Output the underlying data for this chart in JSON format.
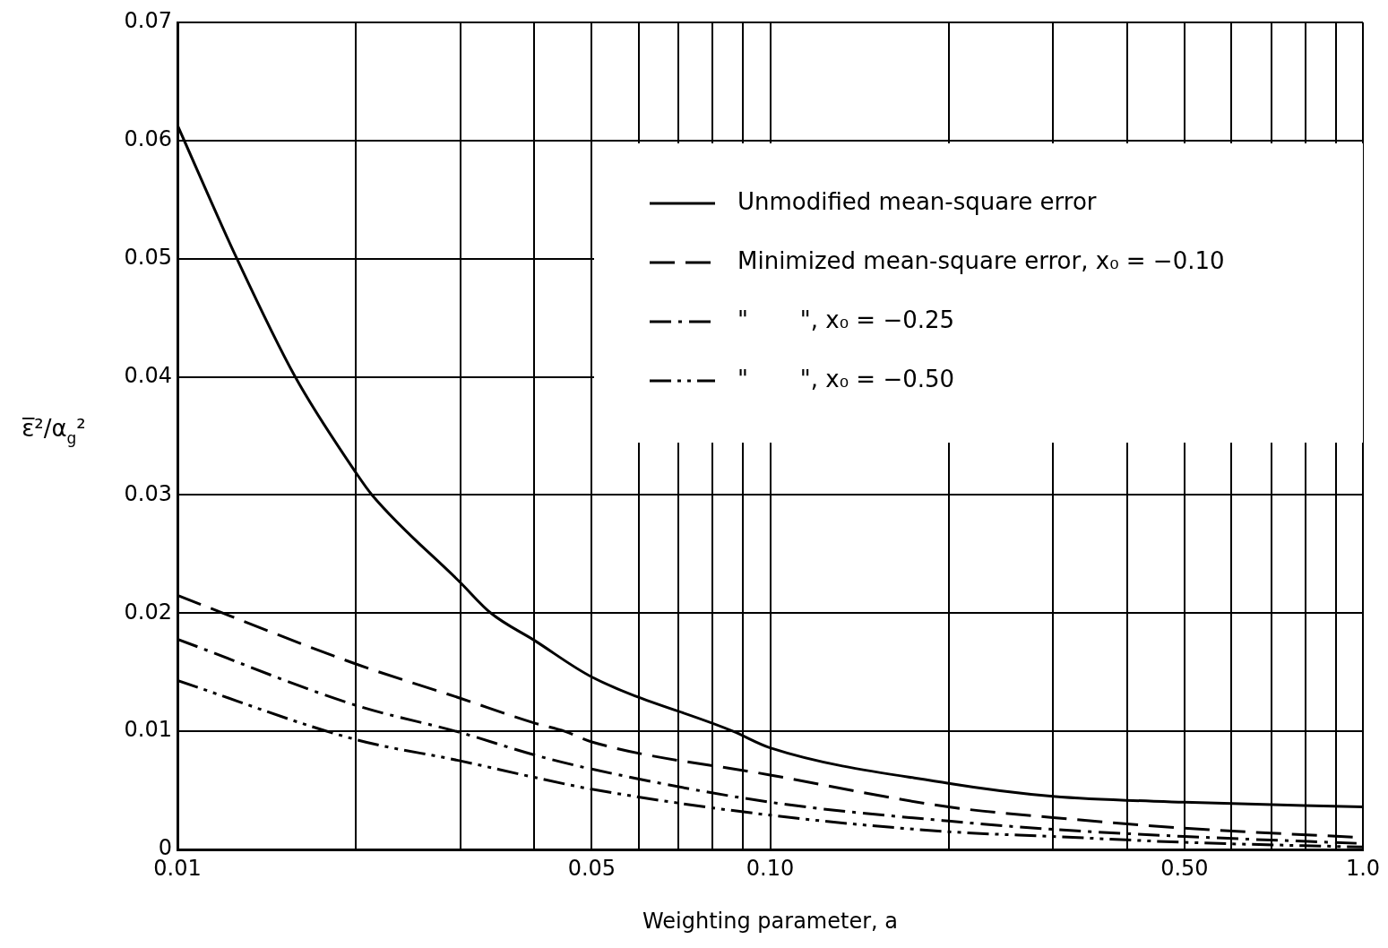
{
  "chart_data": {
    "type": "line",
    "xlabel": "Weighting parameter, a",
    "ylabel": "ε̅²/α$_{g}$²",
    "log": "x",
    "x": [
      0.01,
      0.0126,
      0.0158,
      0.02,
      0.0213,
      0.03,
      0.0338,
      0.04,
      0.05,
      0.0866,
      0.1,
      0.2,
      0.3,
      0.5,
      1.0
    ],
    "series": [
      {
        "name": "Unmodified mean-square error",
        "color": "#000000",
        "line_style": "solid",
        "values": [
          0.0613,
          0.05,
          0.04,
          0.0319,
          0.03,
          0.0226,
          0.02,
          0.0177,
          0.0146,
          0.01,
          0.0086,
          0.0056,
          0.0045,
          0.004,
          0.0036
        ]
      },
      {
        "name": "Minimized mean-square error, x₀ = −0.10",
        "color": "#000000",
        "line_style": "dashed",
        "x": [
          0.01,
          0.02,
          0.03,
          0.04,
          0.045,
          0.05,
          0.1,
          0.2,
          0.3,
          0.5,
          1.0
        ],
        "values": [
          0.0215,
          0.0157,
          0.0128,
          0.0107,
          0.01,
          0.0091,
          0.0063,
          0.0036,
          0.0027,
          0.0018,
          0.001
        ]
      },
      {
        "name": "\"       \", x₀ = −0.25",
        "color": "#000000",
        "line_style": "dashdot",
        "x": [
          0.01,
          0.02,
          0.03,
          0.04,
          0.05,
          0.1,
          0.2,
          0.3,
          0.5,
          1.0
        ],
        "values": [
          0.0178,
          0.0122,
          0.0099,
          0.008,
          0.0068,
          0.004,
          0.0024,
          0.0017,
          0.0011,
          0.0005
        ]
      },
      {
        "name": "\"       \", x₀ = −0.50",
        "color": "#000000",
        "line_style": "dashdotdot",
        "x": [
          0.01,
          0.02,
          0.03,
          0.04,
          0.05,
          0.1,
          0.2,
          0.3,
          0.5,
          1.0
        ],
        "values": [
          0.0143,
          0.0093,
          0.0075,
          0.0061,
          0.0051,
          0.0029,
          0.0015,
          0.0011,
          0.0006,
          0.0002
        ]
      }
    ],
    "xlim": [
      0.01,
      1.0
    ],
    "xticks": [
      {
        "value": 0.01,
        "label": "0.01"
      },
      {
        "value": 0.02,
        "label": null
      },
      {
        "value": 0.03,
        "label": null
      },
      {
        "value": 0.04,
        "label": null
      },
      {
        "value": 0.05,
        "label": "0.05"
      },
      {
        "value": 0.06,
        "label": null
      },
      {
        "value": 0.07,
        "label": null
      },
      {
        "value": 0.08,
        "label": null
      },
      {
        "value": 0.09,
        "label": null
      },
      {
        "value": 0.1,
        "label": "0.10"
      },
      {
        "value": 0.2,
        "label": null
      },
      {
        "value": 0.3,
        "label": null
      },
      {
        "value": 0.4,
        "label": null
      },
      {
        "value": 0.5,
        "label": "0.50"
      },
      {
        "value": 0.6,
        "label": null
      },
      {
        "value": 0.7,
        "label": null
      },
      {
        "value": 0.8,
        "label": null
      },
      {
        "value": 0.9,
        "label": null
      },
      {
        "value": 1.0,
        "label": "1.0"
      }
    ],
    "ylim": [
      0,
      0.07
    ],
    "yticks": [
      0,
      0.01,
      0.02,
      0.03,
      0.04,
      0.05,
      0.06,
      0.07
    ],
    "grid": true,
    "legend": "top right",
    "marker": "none"
  }
}
